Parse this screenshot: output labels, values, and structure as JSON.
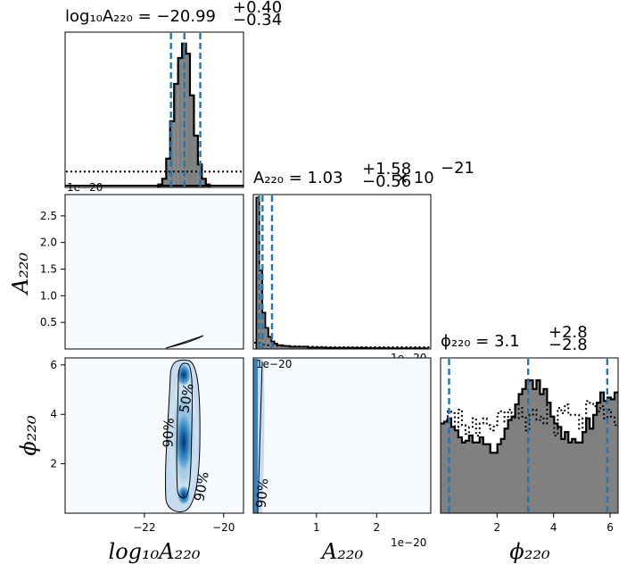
{
  "chart_data": [
    {
      "panel": "marginal-logA220",
      "type": "histogram",
      "title": {
        "param": "log₁₀A₂₂₀",
        "value": "−20.99",
        "upper": "+0.40",
        "lower": "−0.34"
      },
      "xlim": [
        -24,
        -19.5
      ],
      "x": [
        -21.6,
        -21.5,
        -21.4,
        -21.3,
        -21.2,
        -21.1,
        -21.0,
        -20.9,
        -20.8,
        -20.7,
        -20.6,
        -20.5,
        -20.4
      ],
      "posterior": [
        0.02,
        0.06,
        0.2,
        0.46,
        0.72,
        0.9,
        1.0,
        0.93,
        0.64,
        0.36,
        0.16,
        0.06,
        0.02
      ],
      "prior_level": 0.11,
      "quantiles": [
        -21.33,
        -20.99,
        -20.59
      ],
      "offset_text": "1e−20"
    },
    {
      "panel": "marginal-A220",
      "type": "histogram",
      "title": {
        "param": "A₂₂₀",
        "value": "1.03",
        "upper": "+1.58",
        "lower": "−0.56",
        "suffix": "× 10",
        "exponent": "−21"
      },
      "xlim": [
        -0.05,
        2.9
      ],
      "x": [
        0.025,
        0.075,
        0.125,
        0.175,
        0.225,
        0.275,
        0.325,
        0.4,
        0.5,
        0.7,
        1.0,
        1.5,
        2.0,
        2.5
      ],
      "posterior": [
        1.0,
        0.52,
        0.24,
        0.14,
        0.08,
        0.05,
        0.035,
        0.025,
        0.02,
        0.015,
        0.01,
        0.008,
        0.006,
        0.005
      ],
      "quantiles": [
        0.047,
        0.103,
        0.261
      ],
      "offset_text": "1e−20"
    },
    {
      "panel": "marginal-phi220",
      "type": "histogram",
      "title": {
        "param": "ϕ₂₂₀",
        "value": "3.1",
        "upper": "+2.8",
        "lower": "−2.8"
      },
      "xlim": [
        0,
        6.283
      ],
      "bins": 50,
      "posterior": [
        0.52,
        0.53,
        0.55,
        0.5,
        0.48,
        0.44,
        0.41,
        0.42,
        0.45,
        0.41,
        0.41,
        0.44,
        0.4,
        0.4,
        0.35,
        0.35,
        0.4,
        0.43,
        0.49,
        0.54,
        0.56,
        0.63,
        0.69,
        0.72,
        0.77,
        0.77,
        0.72,
        0.77,
        0.69,
        0.72,
        0.64,
        0.56,
        0.52,
        0.5,
        0.43,
        0.47,
        0.41,
        0.43,
        0.41,
        0.41,
        0.47,
        0.55,
        0.49,
        0.57,
        0.64,
        0.7,
        0.65,
        0.67,
        0.66,
        0.7
      ],
      "prior": [
        0.52,
        0.54,
        0.59,
        0.58,
        0.5,
        0.6,
        0.51,
        0.46,
        0.5,
        0.55,
        0.45,
        0.52,
        0.55,
        0.51,
        0.48,
        0.51,
        0.58,
        0.59,
        0.53,
        0.6,
        0.58,
        0.55,
        0.61,
        0.56,
        0.48,
        0.57,
        0.6,
        0.54,
        0.56,
        0.52,
        0.63,
        0.56,
        0.45,
        0.61,
        0.58,
        0.63,
        0.57,
        0.57,
        0.57,
        0.49,
        0.55,
        0.65,
        0.64,
        0.62,
        0.59,
        0.62,
        0.55,
        0.6,
        0.56,
        0.51
      ],
      "ymax": 0.9,
      "quantiles": [
        0.3,
        3.1,
        5.9
      ],
      "xticks": [
        2,
        4,
        6
      ],
      "xticklabels": [
        "2",
        "4",
        "6"
      ],
      "xlabel": "ϕ₂₂₀"
    },
    {
      "panel": "joint-logA220-A220",
      "type": "contour",
      "xlim": [
        -24,
        -19.5
      ],
      "ylim": [
        0,
        2.9
      ],
      "yticks": [
        0.5,
        1.0,
        1.5,
        2.0,
        2.5
      ],
      "yticklabels": [
        "0.5",
        "1.0",
        "1.5",
        "2.0",
        "2.5"
      ],
      "ylabel": "A₂₂₀"
    },
    {
      "panel": "joint-logA220-phi220",
      "type": "contour",
      "xlim": [
        -24,
        -19.5
      ],
      "ylim": [
        0,
        6.283
      ],
      "xticks": [
        -22,
        -20
      ],
      "xticklabels": [
        "−22",
        "−20"
      ],
      "yticks": [
        2,
        4,
        6
      ],
      "yticklabels": [
        "2",
        "4",
        "6"
      ],
      "xlabel": "log₁₀A₂₂₀",
      "ylabel": "ϕ₂₂₀",
      "contour_labels": [
        "50%",
        "90%",
        "90%"
      ]
    },
    {
      "panel": "joint-A220-phi220",
      "type": "contour",
      "xlim": [
        -0.05,
        2.9
      ],
      "ylim": [
        0,
        6.283
      ],
      "xticks": [
        1,
        2
      ],
      "xticklabels": [
        "1",
        "2"
      ],
      "xlabel": "A₂₂₀",
      "offset_text": "1e−20",
      "contour_labels": [
        "90%"
      ]
    }
  ],
  "colors": {
    "hist_fill": "#808080",
    "quantile": "#1f77b4",
    "density_dark": "#08306b",
    "density_mid": "#2171b5",
    "density_light": "#c6dbef",
    "density_bg": "#f7fbff"
  }
}
